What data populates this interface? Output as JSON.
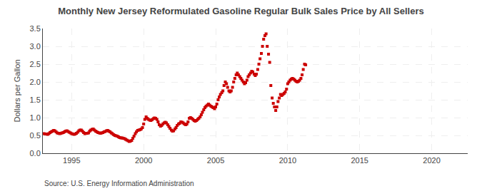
{
  "chart_data": {
    "type": "scatter",
    "title": "Monthly New Jersey Reformulated Gasoline Regular Bulk Sales Price by All Sellers",
    "ylabel": "Dollars per Gallon",
    "annotations": [
      "Source: U.S. Energy Information Administration"
    ],
    "color": "#cc0000",
    "marker": "square",
    "grid": true,
    "xlim": [
      1993.0,
      2022.5
    ],
    "ylim": [
      0.0,
      3.5
    ],
    "xticks": [
      1995,
      2000,
      2005,
      2010,
      2015,
      2020
    ],
    "yticks": [
      {
        "value": 0.0,
        "label": "0.0"
      },
      0.5,
      {
        "value": 1.0,
        "label": "1.0"
      },
      1.5,
      {
        "value": 2.0,
        "label": "2.0"
      },
      2.5,
      {
        "value": 3.0,
        "label": "3.0"
      },
      3.5
    ],
    "x": [
      1993.08,
      1993.17,
      1993.25,
      1993.33,
      1993.42,
      1993.5,
      1993.58,
      1993.67,
      1993.75,
      1993.83,
      1993.92,
      1994.0,
      1994.08,
      1994.17,
      1994.25,
      1994.33,
      1994.42,
      1994.5,
      1994.58,
      1994.67,
      1994.75,
      1994.83,
      1994.92,
      1995.0,
      1995.08,
      1995.17,
      1995.25,
      1995.33,
      1995.42,
      1995.5,
      1995.58,
      1995.67,
      1995.75,
      1995.83,
      1995.92,
      1996.0,
      1996.08,
      1996.17,
      1996.25,
      1996.33,
      1996.42,
      1996.5,
      1996.58,
      1996.67,
      1996.75,
      1996.83,
      1996.92,
      1997.0,
      1997.08,
      1997.17,
      1997.25,
      1997.33,
      1997.42,
      1997.5,
      1997.58,
      1997.67,
      1997.75,
      1997.83,
      1997.92,
      1998.0,
      1998.08,
      1998.17,
      1998.25,
      1998.33,
      1998.42,
      1998.5,
      1998.58,
      1998.67,
      1998.75,
      1998.83,
      1998.92,
      1999.0,
      1999.08,
      1999.17,
      1999.25,
      1999.33,
      1999.42,
      1999.5,
      1999.58,
      1999.67,
      1999.75,
      1999.83,
      1999.92,
      2000.0,
      2000.08,
      2000.17,
      2000.25,
      2000.33,
      2000.42,
      2000.5,
      2000.58,
      2000.67,
      2000.75,
      2000.83,
      2000.92,
      2001.0,
      2001.08,
      2001.17,
      2001.25,
      2001.33,
      2001.42,
      2001.5,
      2001.58,
      2001.67,
      2001.75,
      2001.83,
      2001.92,
      2002.0,
      2002.08,
      2002.17,
      2002.25,
      2002.33,
      2002.42,
      2002.5,
      2002.58,
      2002.67,
      2002.75,
      2002.83,
      2002.92,
      2003.0,
      2003.08,
      2003.17,
      2003.25,
      2003.33,
      2003.42,
      2003.5,
      2003.58,
      2003.67,
      2003.75,
      2003.83,
      2003.92,
      2004.0,
      2004.08,
      2004.17,
      2004.25,
      2004.33,
      2004.42,
      2004.5,
      2004.58,
      2004.67,
      2004.75,
      2004.83,
      2004.92,
      2005.0,
      2005.08,
      2005.17,
      2005.25,
      2005.33,
      2005.42,
      2005.5,
      2005.58,
      2005.67,
      2005.75,
      2005.83,
      2005.92,
      2006.0,
      2006.08,
      2006.17,
      2006.25,
      2006.33,
      2006.42,
      2006.5,
      2006.58,
      2006.67,
      2006.75,
      2006.83,
      2006.92,
      2007.0,
      2007.08,
      2007.17,
      2007.25,
      2007.33,
      2007.42,
      2007.5,
      2007.58,
      2007.67,
      2007.75,
      2007.83,
      2007.92,
      2008.0,
      2008.08,
      2008.17,
      2008.25,
      2008.33,
      2008.42,
      2008.5,
      2008.58,
      2008.67,
      2008.75,
      2008.83,
      2008.92,
      2009.0,
      2009.08,
      2009.17,
      2009.25,
      2009.33,
      2009.42,
      2009.5,
      2009.58,
      2009.67,
      2009.75,
      2009.83,
      2009.92,
      2010.0,
      2010.08,
      2010.17,
      2010.25,
      2010.33,
      2010.42,
      2010.5,
      2010.58,
      2010.67,
      2010.75,
      2010.83,
      2010.92,
      2011.0,
      2011.08,
      2011.17,
      2011.25
    ],
    "values": [
      0.55,
      0.54,
      0.54,
      0.53,
      0.55,
      0.58,
      0.6,
      0.62,
      0.64,
      0.63,
      0.6,
      0.57,
      0.56,
      0.55,
      0.56,
      0.57,
      0.58,
      0.6,
      0.62,
      0.63,
      0.61,
      0.59,
      0.57,
      0.55,
      0.54,
      0.53,
      0.54,
      0.56,
      0.59,
      0.63,
      0.65,
      0.65,
      0.62,
      0.58,
      0.55,
      0.56,
      0.56,
      0.57,
      0.62,
      0.65,
      0.67,
      0.68,
      0.65,
      0.62,
      0.6,
      0.58,
      0.57,
      0.56,
      0.57,
      0.58,
      0.6,
      0.61,
      0.63,
      0.64,
      0.62,
      0.6,
      0.57,
      0.55,
      0.52,
      0.5,
      0.49,
      0.48,
      0.46,
      0.44,
      0.43,
      0.43,
      0.42,
      0.41,
      0.39,
      0.37,
      0.35,
      0.33,
      0.34,
      0.36,
      0.42,
      0.48,
      0.55,
      0.6,
      0.64,
      0.65,
      0.66,
      0.68,
      0.72,
      0.82,
      0.95,
      1.02,
      0.98,
      0.95,
      0.93,
      0.92,
      0.94,
      0.97,
      0.99,
      0.98,
      0.95,
      0.88,
      0.8,
      0.76,
      0.78,
      0.82,
      0.85,
      0.87,
      0.85,
      0.8,
      0.75,
      0.7,
      0.65,
      0.62,
      0.63,
      0.68,
      0.72,
      0.78,
      0.82,
      0.84,
      0.88,
      0.87,
      0.85,
      0.82,
      0.8,
      0.82,
      0.88,
      0.98,
      1.0,
      0.98,
      0.95,
      0.92,
      0.9,
      0.92,
      0.95,
      0.98,
      1.02,
      1.08,
      1.15,
      1.22,
      1.28,
      1.32,
      1.35,
      1.38,
      1.35,
      1.32,
      1.3,
      1.28,
      1.25,
      1.3,
      1.38,
      1.5,
      1.58,
      1.65,
      1.7,
      1.75,
      1.9,
      2.0,
      1.95,
      1.85,
      1.75,
      1.72,
      1.75,
      1.85,
      2.0,
      2.1,
      2.2,
      2.25,
      2.2,
      2.15,
      2.1,
      2.05,
      2.0,
      1.95,
      1.98,
      2.05,
      2.15,
      2.2,
      2.25,
      2.3,
      2.28,
      2.22,
      2.18,
      2.22,
      2.35,
      2.5,
      2.65,
      2.8,
      3.0,
      3.2,
      3.3,
      3.35,
      3.0,
      2.78,
      2.55,
      1.9,
      1.55,
      1.4,
      1.3,
      1.2,
      1.3,
      1.45,
      1.55,
      1.65,
      1.62,
      1.65,
      1.68,
      1.72,
      1.8,
      1.95,
      2.0,
      2.05,
      2.08,
      2.1,
      2.08,
      2.05,
      2.02,
      2.0,
      2.02,
      2.05,
      2.1,
      2.2,
      2.35,
      2.5,
      2.48
    ]
  }
}
